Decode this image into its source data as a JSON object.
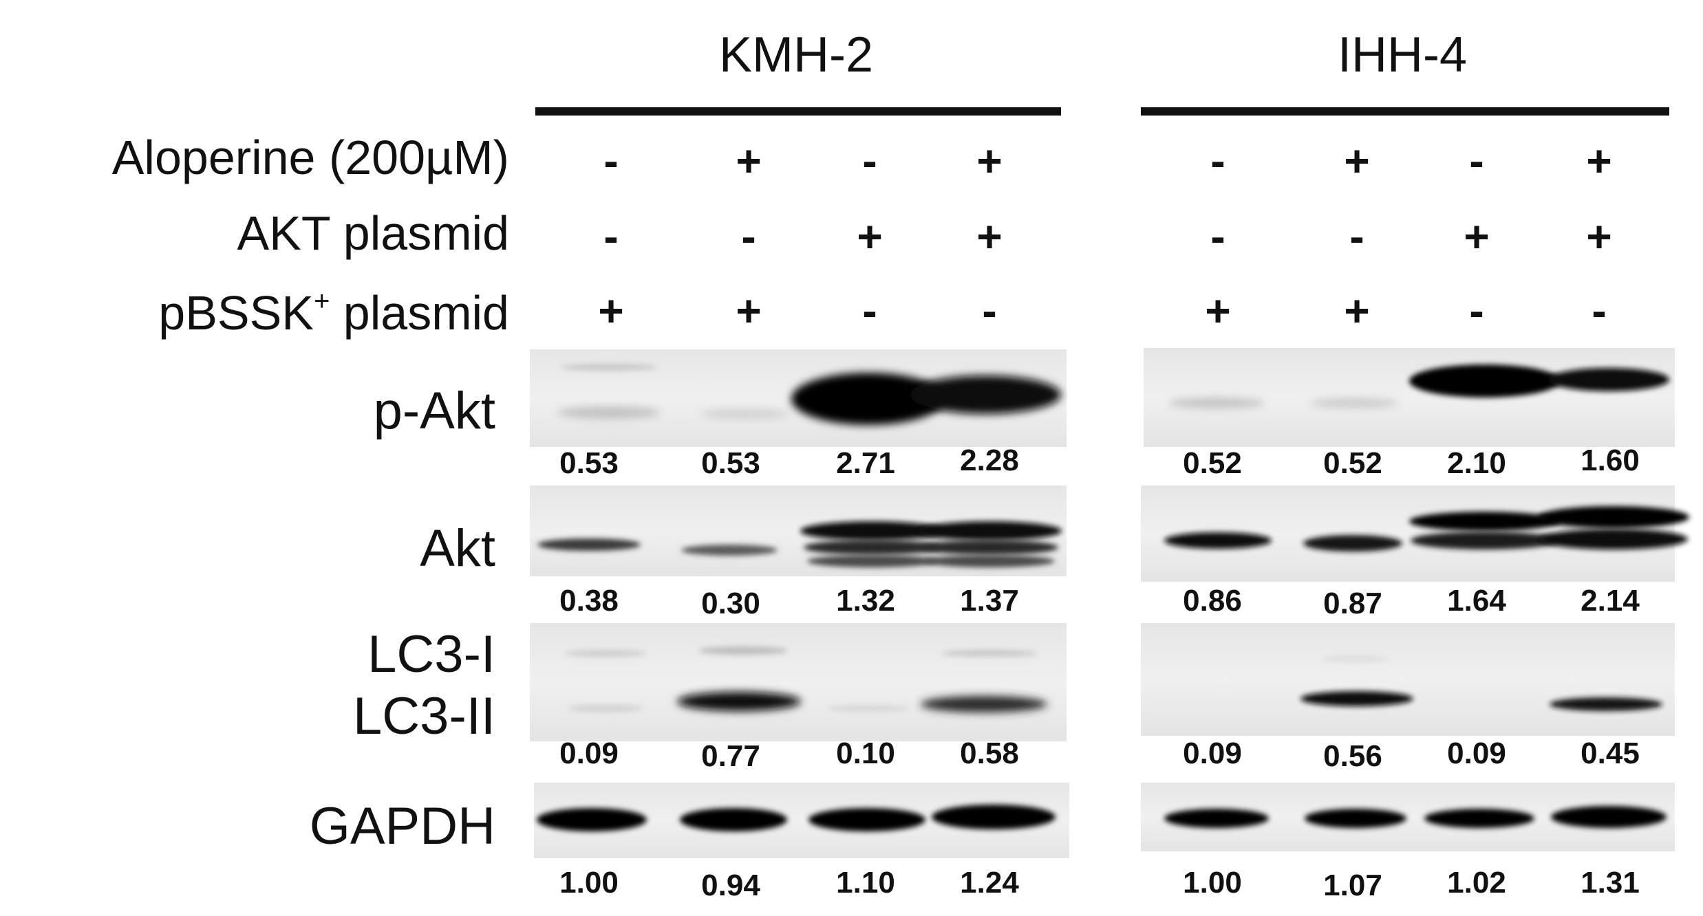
{
  "cell_lines": [
    {
      "name": "KMH-2"
    },
    {
      "name": "IHH-4"
    }
  ],
  "conditions": {
    "labels": [
      "Aloperine (200µM)",
      "AKT plasmid",
      "pBSSK",
      "plasmid"
    ],
    "superscript": "+",
    "aloperine": [
      "-",
      "+",
      "-",
      "+"
    ],
    "akt_plasmid": [
      "-",
      "-",
      "+",
      "+"
    ],
    "pbssk_plasmid": [
      "+",
      "+",
      "-",
      "-"
    ]
  },
  "blots": [
    {
      "label": "p-Akt",
      "quant": {
        "KMH-2": [
          "0.53",
          "0.53",
          "2.71",
          "2.28"
        ],
        "IHH-4": [
          "0.52",
          "0.52",
          "2.10",
          "1.60"
        ]
      }
    },
    {
      "label": "Akt",
      "quant": {
        "KMH-2": [
          "0.38",
          "0.30",
          "1.32",
          "1.37"
        ],
        "IHH-4": [
          "0.86",
          "0.87",
          "1.64",
          "2.14"
        ]
      }
    },
    {
      "label_top": "LC3-I",
      "label_bottom": "LC3-II",
      "quant": {
        "KMH-2": [
          "0.09",
          "0.77",
          "0.10",
          "0.58"
        ],
        "IHH-4": [
          "0.09",
          "0.56",
          "0.09",
          "0.45"
        ]
      }
    },
    {
      "label": "GAPDH",
      "quant": {
        "KMH-2": [
          "1.00",
          "0.94",
          "1.10",
          "1.24"
        ],
        "IHH-4": [
          "1.00",
          "1.07",
          "1.02",
          "1.31"
        ]
      }
    }
  ],
  "colors": {
    "ink": "#111111",
    "band": "#0a0a0a",
    "membrane": "#ececec"
  }
}
